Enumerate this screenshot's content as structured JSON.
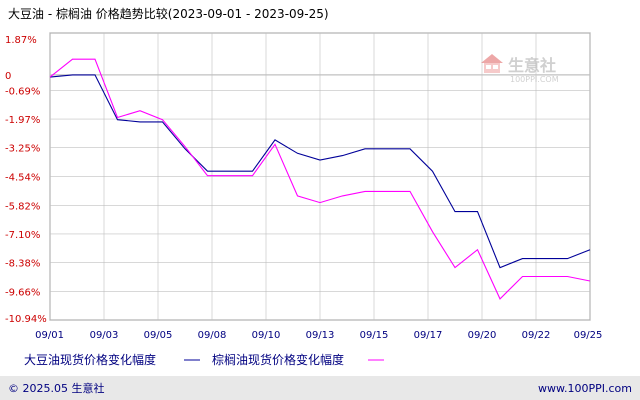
{
  "header": {
    "title": "大豆油 - 棕榈油 价格趋势比较(2023-09-01 - 2023-09-25)"
  },
  "watermark": {
    "name": "生意社",
    "url": "100PPI.COM"
  },
  "footer": {
    "copyright": "© 2025.05 生意社",
    "site": "www.100PPI.com"
  },
  "colors": {
    "soybean": "#000099",
    "palm": "#ff00ff",
    "grid": "#c0c0c0",
    "axis_text": "#cc0000",
    "tick_text": "#000080",
    "footer_bg": "#e8e8e8"
  },
  "chart_data": {
    "type": "line",
    "title": "大豆油 - 棕榈油 价格趋势比较(2023-09-01 - 2023-09-25)",
    "xlabel": "",
    "ylabel": "",
    "x_ticks": [
      "09/01",
      "09/03",
      "09/05",
      "09/08",
      "09/10",
      "09/13",
      "09/15",
      "09/17",
      "09/20",
      "09/22",
      "09/25"
    ],
    "y_ticks": [
      "1.87%",
      "0",
      "-0.69%",
      "-1.97%",
      "-3.25%",
      "-4.54%",
      "-5.82%",
      "-7.10%",
      "-8.38%",
      "-9.66%",
      "-10.94%"
    ],
    "y_tick_values": [
      1.87,
      0,
      -0.69,
      -1.97,
      -3.25,
      -4.54,
      -5.82,
      -7.1,
      -8.38,
      -9.66,
      -10.94
    ],
    "ylim": [
      -10.94,
      1.87
    ],
    "grid": true,
    "legend_position": "bottom",
    "series": [
      {
        "name": "大豆油现货价格变化幅度",
        "color": "#000099",
        "x": [
          "09/01",
          "09/02",
          "09/03",
          "09/04",
          "09/05",
          "09/06",
          "09/07",
          "09/08",
          "09/09",
          "09/10",
          "09/11",
          "09/12",
          "09/13",
          "09/14",
          "09/15",
          "09/16",
          "09/17",
          "09/18",
          "09/19",
          "09/20",
          "09/21",
          "09/22",
          "09/23",
          "09/24",
          "09/25"
        ],
        "values": [
          -0.1,
          0.0,
          0.0,
          -2.0,
          -2.1,
          -2.1,
          -3.3,
          -4.3,
          -4.3,
          -4.3,
          -2.9,
          -3.5,
          -3.8,
          -3.6,
          -3.3,
          -3.3,
          -3.3,
          -4.3,
          -6.1,
          -6.1,
          -8.6,
          -8.2,
          -8.2,
          -8.2,
          -7.8
        ]
      },
      {
        "name": "棕榈油现货价格变化幅度",
        "color": "#ff00ff",
        "x": [
          "09/01",
          "09/02",
          "09/03",
          "09/04",
          "09/05",
          "09/06",
          "09/07",
          "09/08",
          "09/09",
          "09/10",
          "09/11",
          "09/12",
          "09/13",
          "09/14",
          "09/15",
          "09/16",
          "09/17",
          "09/18",
          "09/19",
          "09/20",
          "09/21",
          "09/22",
          "09/23",
          "09/24",
          "09/25"
        ],
        "values": [
          -0.1,
          0.7,
          0.7,
          -1.9,
          -1.6,
          -2.0,
          -3.2,
          -4.5,
          -4.5,
          -4.5,
          -3.1,
          -5.4,
          -5.7,
          -5.4,
          -5.2,
          -5.2,
          -5.2,
          -7.0,
          -8.6,
          -7.8,
          -10.0,
          -9.0,
          -9.0,
          -9.0,
          -9.2
        ]
      }
    ]
  }
}
